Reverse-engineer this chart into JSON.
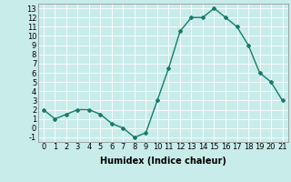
{
  "x": [
    0,
    1,
    2,
    3,
    4,
    5,
    6,
    7,
    8,
    9,
    10,
    11,
    12,
    13,
    14,
    15,
    16,
    17,
    18,
    19,
    20,
    21
  ],
  "y": [
    2,
    1,
    1.5,
    2,
    2,
    1.5,
    0.5,
    0,
    -1,
    -0.5,
    3,
    6.5,
    10.5,
    12,
    12,
    13,
    12,
    11,
    9,
    6,
    5,
    3
  ],
  "line_color": "#1a7a6a",
  "marker": "D",
  "marker_size": 2,
  "bg_color": "#c8ecea",
  "grid_color": "#ffffff",
  "xlabel": "Humidex (Indice chaleur)",
  "xlim": [
    -0.5,
    21.5
  ],
  "ylim": [
    -1.5,
    13.5
  ],
  "yticks": [
    -1,
    0,
    1,
    2,
    3,
    4,
    5,
    6,
    7,
    8,
    9,
    10,
    11,
    12,
    13
  ],
  "xticks": [
    0,
    1,
    2,
    3,
    4,
    5,
    6,
    7,
    8,
    9,
    10,
    11,
    12,
    13,
    14,
    15,
    16,
    17,
    18,
    19,
    20,
    21
  ],
  "tick_fontsize": 6,
  "label_fontsize": 7
}
